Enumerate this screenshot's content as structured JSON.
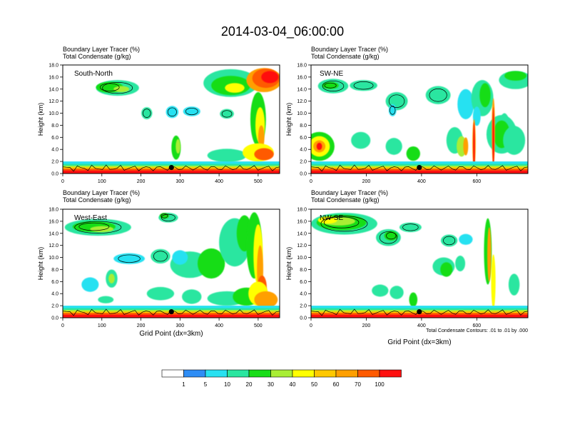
{
  "title": "2014-03-04_06:00:00",
  "panel_header": {
    "line1": "Boundary Layer Tracer    (%)",
    "line2": "Total Condensate    (g/kg)"
  },
  "y_axis_label": "Height (km)",
  "x_axis_label": "Grid Point (dx=3km)",
  "contour_note": "Total Condensate Contours: .01 to .01 by .000",
  "colorbar": {
    "colors": [
      "#ffffff",
      "#2e8df5",
      "#28e1f1",
      "#2ae6a0",
      "#18dd18",
      "#a8ee34",
      "#ffff00",
      "#ffc800",
      "#ff9f00",
      "#ff5a00",
      "#ff1010"
    ],
    "labels": [
      "1",
      "5",
      "10",
      "20",
      "30",
      "40",
      "50",
      "60",
      "70",
      "100"
    ]
  },
  "chart_data": [
    {
      "type": "heatmap",
      "panel": "South-North",
      "ylim": [
        0,
        18
      ],
      "xlim": [
        0,
        555
      ],
      "x_ticks": [
        0,
        100,
        200,
        300,
        400,
        500
      ],
      "y_ticks": [
        0,
        2,
        4,
        6,
        8,
        10,
        12,
        14,
        16,
        18
      ],
      "contour_label": "01",
      "marker": {
        "x": 278,
        "y": 1.0
      }
    },
    {
      "type": "heatmap",
      "panel": "SW-NE",
      "ylim": [
        0,
        18
      ],
      "xlim": [
        0,
        785
      ],
      "x_ticks": [
        0,
        200,
        400,
        600
      ],
      "y_ticks": [
        0,
        2,
        4,
        6,
        8,
        10,
        12,
        14,
        16,
        18
      ],
      "contour_label": "01",
      "marker": {
        "x": 392,
        "y": 1.0
      }
    },
    {
      "type": "heatmap",
      "panel": "West-East",
      "ylim": [
        0,
        18
      ],
      "xlim": [
        0,
        555
      ],
      "x_ticks": [
        0,
        100,
        200,
        300,
        400,
        500
      ],
      "y_ticks": [
        0,
        2,
        4,
        6,
        8,
        10,
        12,
        14,
        16,
        18
      ],
      "contour_label": "01",
      "marker": {
        "x": 278,
        "y": 1.0
      }
    },
    {
      "type": "heatmap",
      "panel": "NW-SE",
      "ylim": [
        0,
        18
      ],
      "xlim": [
        0,
        785
      ],
      "x_ticks": [
        0,
        200,
        400,
        600
      ],
      "y_ticks": [
        0,
        2,
        4,
        6,
        8,
        10,
        12,
        14,
        16,
        18
      ],
      "contour_label": "01",
      "marker": {
        "x": 392,
        "y": 1.0
      }
    }
  ]
}
